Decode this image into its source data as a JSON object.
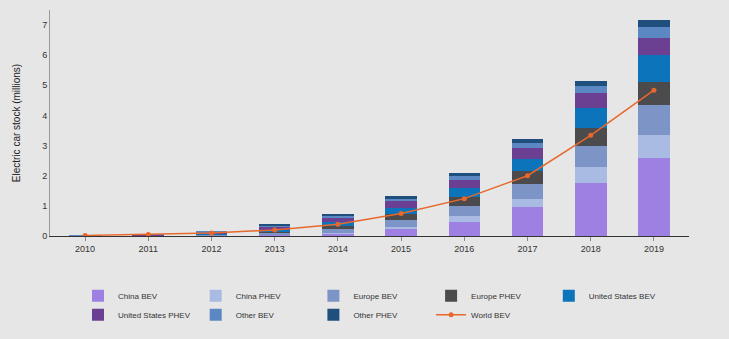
{
  "chart_data": {
    "type": "bar",
    "stacked": true,
    "grid": false,
    "legend": "bottom",
    "y_label": "Electric car stock (millions)",
    "categories": [
      "2010",
      "2011",
      "2012",
      "2013",
      "2014",
      "2015",
      "2016",
      "2017",
      "2018",
      "2019"
    ],
    "ylim": [
      0,
      7.5
    ],
    "yticks": [
      0,
      1,
      2,
      3,
      4,
      5,
      6,
      7
    ],
    "series": [
      {
        "name": "China BEV",
        "type": "bar",
        "color": "#9d80e2",
        "values": [
          0.0,
          0.01,
          0.02,
          0.03,
          0.08,
          0.23,
          0.48,
          0.95,
          1.76,
          2.58
        ]
      },
      {
        "name": "China PHEV",
        "type": "bar",
        "color": "#a9bae3",
        "values": [
          0.0,
          0.0,
          0.0,
          0.0,
          0.03,
          0.08,
          0.17,
          0.28,
          0.54,
          0.77
        ]
      },
      {
        "name": "Europe BEV",
        "type": "bar",
        "color": "#7d95c6",
        "values": [
          0.01,
          0.01,
          0.03,
          0.07,
          0.13,
          0.23,
          0.33,
          0.48,
          0.68,
          1.0
        ]
      },
      {
        "name": "Europe PHEV",
        "type": "bar",
        "color": "#4b4b4d",
        "values": [
          0.0,
          0.0,
          0.01,
          0.05,
          0.1,
          0.2,
          0.31,
          0.45,
          0.62,
          0.77
        ]
      },
      {
        "name": "United States BEV",
        "type": "bar",
        "color": "#0b74bb",
        "values": [
          0.0,
          0.01,
          0.02,
          0.06,
          0.12,
          0.2,
          0.3,
          0.4,
          0.65,
          0.89
        ]
      },
      {
        "name": "United States PHEV",
        "type": "bar",
        "color": "#6b3f91",
        "values": [
          0.0,
          0.01,
          0.05,
          0.11,
          0.17,
          0.23,
          0.27,
          0.36,
          0.48,
          0.56
        ]
      },
      {
        "name": "Other BEV",
        "type": "bar",
        "color": "#5b88c2",
        "values": [
          0.01,
          0.02,
          0.03,
          0.04,
          0.06,
          0.09,
          0.13,
          0.17,
          0.25,
          0.37
        ]
      },
      {
        "name": "Other PHEV",
        "type": "bar",
        "color": "#1f4f7d",
        "values": [
          0.0,
          0.0,
          0.0,
          0.02,
          0.04,
          0.06,
          0.09,
          0.12,
          0.16,
          0.22
        ]
      },
      {
        "name": "World BEV",
        "type": "line",
        "marker": "circle",
        "line_style": "solid",
        "color": "#e8682b",
        "values": [
          0.02,
          0.05,
          0.1,
          0.2,
          0.39,
          0.75,
          1.24,
          2.0,
          3.34,
          4.84
        ]
      }
    ]
  }
}
